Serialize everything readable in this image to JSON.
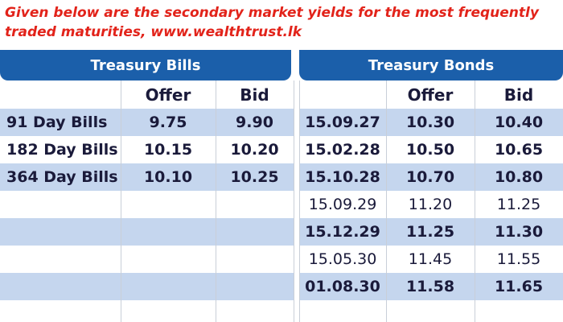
{
  "caption": [
    "Given below are the secondary market yields for the most frequently",
    "traded maturities, www.wealthtrust.lk"
  ],
  "bills": {
    "title": "Treasury Bills",
    "headers": [
      "Offer",
      "Bid"
    ],
    "rows": [
      [
        "91 Day Bills",
        "9.75",
        "9.90"
      ],
      [
        "182 Day Bills",
        "10.15",
        "10.20"
      ],
      [
        "364 Day Bills",
        "10.10",
        "10.25"
      ]
    ]
  },
  "bonds": {
    "title": "Treasury Bonds",
    "headers": [
      "Offer",
      "Bid"
    ],
    "rows": [
      [
        "15.09.27",
        "10.30",
        "10.40"
      ],
      [
        "15.02.28",
        "10.50",
        "10.65"
      ],
      [
        "15.10.28",
        "10.70",
        "10.80"
      ],
      [
        "15.09.29",
        "11.20",
        "11.25"
      ],
      [
        "15.12.29",
        "11.25",
        "11.30"
      ],
      [
        "15.05.30",
        "11.45",
        "11.55"
      ],
      [
        "01.08.30",
        "11.58",
        "11.65"
      ]
    ]
  }
}
